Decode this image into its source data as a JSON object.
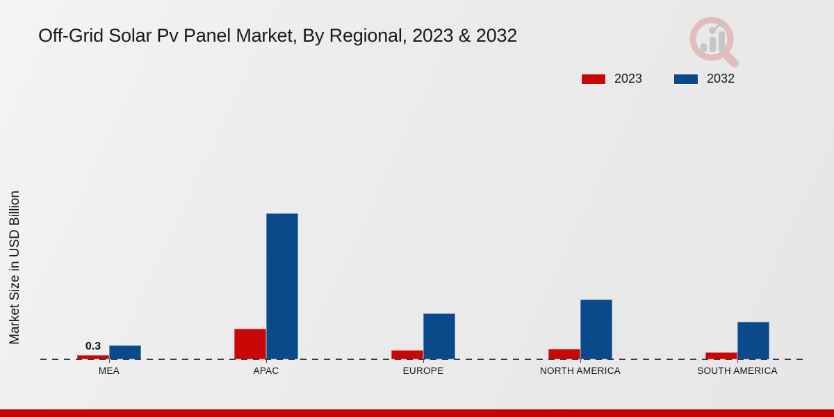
{
  "title": "Off-Grid Solar Pv Panel Market, By Regional, 2023 & 2032",
  "y_axis_label": "Market Size in USD Billion",
  "legend": [
    {
      "label": "2023",
      "color": "#c90707"
    },
    {
      "label": "2032",
      "color": "#0a4a8a"
    }
  ],
  "icons": {
    "logo": "magnifier-bar-chart-logo"
  },
  "footer": {
    "color": "#c40404"
  },
  "chart_data": {
    "type": "bar",
    "categories": [
      "MEA",
      "APAC",
      "EUROPE",
      "NORTH AMERICA",
      "SOUTH AMERICA"
    ],
    "series": [
      {
        "name": "2023",
        "color": "#c90707",
        "values": [
          0.3,
          2.2,
          0.65,
          0.75,
          0.5
        ]
      },
      {
        "name": "2032",
        "color": "#0a4a8a",
        "values": [
          1.0,
          10.5,
          3.3,
          4.3,
          2.7
        ]
      }
    ],
    "data_labels": [
      {
        "category": "MEA",
        "series": "2023",
        "text": "0.3"
      }
    ],
    "title": "Off-Grid Solar Pv Panel Market, By Regional, 2023 & 2032",
    "xlabel": "",
    "ylabel": "Market Size in USD Billion",
    "ylim": [
      0,
      11
    ],
    "grid": false,
    "baseline_style": "dashed",
    "legend_position": "top-right"
  }
}
